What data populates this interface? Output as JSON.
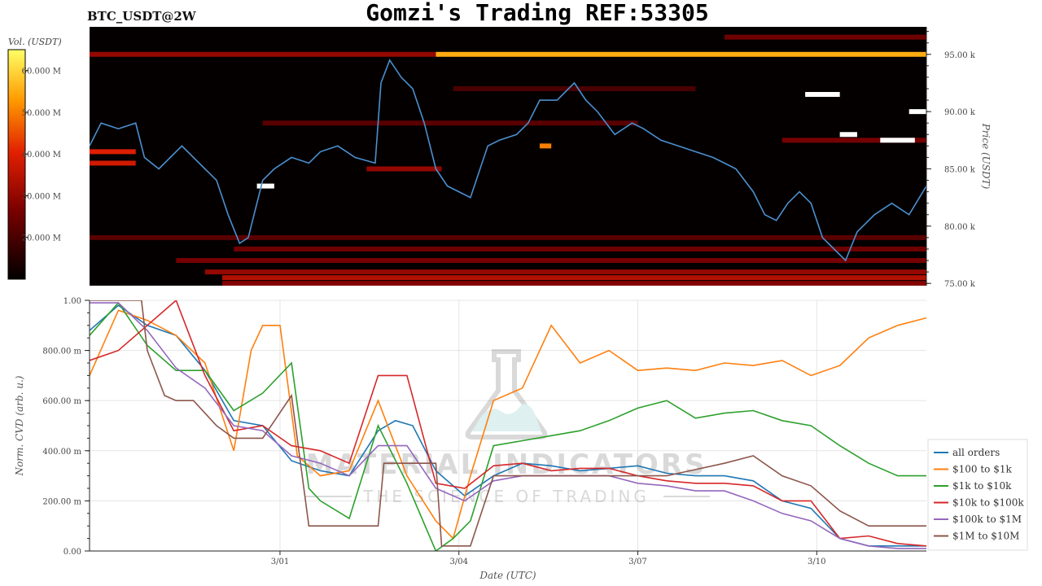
{
  "header": {
    "pair": "BTC_USDT@2W",
    "title": "Gomzi's Trading REF:53305"
  },
  "colorbar": {
    "label": "Vol. (USDT)",
    "ticks": [
      "60.000 M",
      "50.000 M",
      "40.000 M",
      "30.000 M",
      "20.000 M"
    ],
    "tick_values": [
      60,
      50,
      40,
      30,
      20
    ],
    "range": [
      10,
      65
    ]
  },
  "watermark": {
    "line1": "MATERIAL INDICATORS",
    "line2": "THE SCIENCE OF TRADING"
  },
  "colors": {
    "heatmap_bg": "#050000",
    "price_line": "#4a90d0",
    "grid": "#e5e5e5"
  },
  "chart_data": [
    {
      "type": "heatmap",
      "title": "Gomzi's Trading REF:53305",
      "ylabel": "Price (USDT)",
      "ylim": [
        74800,
        97400
      ],
      "y_ticks": [
        "95.00 k",
        "90.00 k",
        "85.00 k",
        "80.00 k",
        "75.00 k"
      ],
      "y_tick_values": [
        95000,
        90000,
        85000,
        80000,
        75000
      ],
      "x_range_days": [
        0,
        14.5
      ],
      "price_series": {
        "x": [
          0,
          0.2,
          0.5,
          0.8,
          0.95,
          1.2,
          1.6,
          2.0,
          2.2,
          2.4,
          2.6,
          2.75,
          3.0,
          3.2,
          3.5,
          3.8,
          4.0,
          4.3,
          4.6,
          4.95,
          5.05,
          5.2,
          5.4,
          5.6,
          5.8,
          6.0,
          6.2,
          6.4,
          6.6,
          6.9,
          7.1,
          7.4,
          7.6,
          7.8,
          8.1,
          8.4,
          8.6,
          8.8,
          9.1,
          9.4,
          9.6,
          9.9,
          10.2,
          10.5,
          10.8,
          11.0,
          11.2,
          11.5,
          11.7,
          11.9,
          12.1,
          12.3,
          12.5,
          12.7,
          12.9,
          13.1,
          13.3,
          13.6,
          13.9,
          14.2,
          14.5
        ],
        "y": [
          87000,
          89000,
          88500,
          89000,
          86000,
          85000,
          87000,
          85000,
          84000,
          81000,
          78500,
          79000,
          84000,
          85000,
          86000,
          85500,
          86500,
          87000,
          86000,
          85500,
          92500,
          94500,
          93000,
          92000,
          89000,
          85000,
          83500,
          83000,
          82500,
          87000,
          87500,
          88000,
          89000,
          91000,
          91000,
          92500,
          91000,
          90000,
          88000,
          89000,
          88500,
          87500,
          87000,
          86500,
          86000,
          85500,
          85000,
          83000,
          81000,
          80500,
          82000,
          83000,
          82000,
          79000,
          78000,
          77000,
          79500,
          81000,
          82000,
          81000,
          83500
        ]
      },
      "liquidity_bands": [
        {
          "price": 95000,
          "start": 6.0,
          "end": 14.5,
          "vol": 55
        },
        {
          "price": 95000,
          "start": 0.0,
          "end": 6.0,
          "vol": 30
        },
        {
          "price": 96500,
          "start": 11.0,
          "end": 14.5,
          "vol": 25
        },
        {
          "price": 86500,
          "start": 0.0,
          "end": 0.8,
          "vol": 40
        },
        {
          "price": 85500,
          "start": 0.0,
          "end": 0.8,
          "vol": 38
        },
        {
          "price": 85000,
          "start": 4.8,
          "end": 6.1,
          "vol": 30
        },
        {
          "price": 87000,
          "start": 7.8,
          "end": 8.0,
          "vol": 50
        },
        {
          "price": 79000,
          "start": 0.0,
          "end": 14.5,
          "vol": 22
        },
        {
          "price": 78000,
          "start": 2.5,
          "end": 14.5,
          "vol": 25
        },
        {
          "price": 77000,
          "start": 1.5,
          "end": 14.5,
          "vol": 26
        },
        {
          "price": 76000,
          "start": 2.0,
          "end": 14.5,
          "vol": 30
        },
        {
          "price": 75500,
          "start": 2.3,
          "end": 14.5,
          "vol": 34
        },
        {
          "price": 75000,
          "start": 2.3,
          "end": 14.5,
          "vol": 28
        },
        {
          "price": 89000,
          "start": 3.0,
          "end": 9.5,
          "vol": 22
        },
        {
          "price": 92000,
          "start": 6.3,
          "end": 10.5,
          "vol": 20
        },
        {
          "price": 87500,
          "start": 12.0,
          "end": 14.5,
          "vol": 26
        },
        {
          "price": 91500,
          "start": 12.4,
          "end": 13.0,
          "vol": 65
        },
        {
          "price": 87500,
          "start": 13.7,
          "end": 14.3,
          "vol": 65
        },
        {
          "price": 88000,
          "start": 13.0,
          "end": 13.3,
          "vol": 65
        },
        {
          "price": 90000,
          "start": 14.2,
          "end": 14.5,
          "vol": 65
        },
        {
          "price": 83500,
          "start": 2.9,
          "end": 3.2,
          "vol": 65
        }
      ]
    },
    {
      "type": "line",
      "xlabel": "Date (UTC)",
      "ylabel": "Norm. CVD (arb. u.)",
      "ylim": [
        0,
        1
      ],
      "y_ticks": [
        "1.00",
        "800.00 m",
        "600.00 m",
        "400.00 m",
        "200.00 m",
        "0.00"
      ],
      "y_tick_values": [
        1.0,
        0.8,
        0.6,
        0.4,
        0.2,
        0.0
      ],
      "x_ticks": [
        "3/01",
        "3/04",
        "3/07",
        "3/10"
      ],
      "x_tick_values": [
        3.3,
        6.4,
        9.5,
        12.6
      ],
      "x_range_days": [
        0,
        14.5
      ],
      "series": [
        {
          "name": "all orders",
          "color": "#1f77b4",
          "x": [
            0,
            0.5,
            1.0,
            1.5,
            2.0,
            2.5,
            3.0,
            3.5,
            4.0,
            4.5,
            5.0,
            5.3,
            5.6,
            6.0,
            6.5,
            7.0,
            7.5,
            8.0,
            8.5,
            9.0,
            9.5,
            10.0,
            10.5,
            11.0,
            11.5,
            12.0,
            12.5,
            13.0,
            13.5,
            14.0,
            14.5
          ],
          "y": [
            0.88,
            0.98,
            0.9,
            0.86,
            0.72,
            0.52,
            0.5,
            0.36,
            0.32,
            0.3,
            0.48,
            0.52,
            0.5,
            0.32,
            0.22,
            0.3,
            0.35,
            0.34,
            0.32,
            0.33,
            0.34,
            0.31,
            0.3,
            0.3,
            0.28,
            0.2,
            0.17,
            0.05,
            0.02,
            0.02,
            0.02
          ]
        },
        {
          "name": "$100 to $1k",
          "color": "#ff7f0e",
          "x": [
            0,
            0.5,
            1.0,
            1.5,
            2.0,
            2.5,
            2.8,
            3.0,
            3.3,
            3.6,
            4.0,
            4.5,
            5.0,
            5.5,
            6.0,
            6.3,
            6.6,
            7.0,
            7.5,
            8.0,
            8.5,
            9.0,
            9.5,
            10.0,
            10.5,
            11.0,
            11.5,
            12.0,
            12.5,
            13.0,
            13.5,
            14.0,
            14.5
          ],
          "y": [
            0.7,
            0.96,
            0.92,
            0.86,
            0.75,
            0.4,
            0.8,
            0.9,
            0.9,
            0.38,
            0.3,
            0.32,
            0.6,
            0.3,
            0.12,
            0.05,
            0.3,
            0.6,
            0.65,
            0.9,
            0.75,
            0.8,
            0.72,
            0.73,
            0.72,
            0.75,
            0.74,
            0.76,
            0.7,
            0.74,
            0.85,
            0.9,
            0.93
          ]
        },
        {
          "name": "$1k to $10k",
          "color": "#2ca02c",
          "x": [
            0,
            0.5,
            1.0,
            1.5,
            2.0,
            2.5,
            3.0,
            3.5,
            3.8,
            4.0,
            4.5,
            5.0,
            5.5,
            6.0,
            6.3,
            6.6,
            7.0,
            7.5,
            8.0,
            8.5,
            9.0,
            9.5,
            10.0,
            10.5,
            11.0,
            11.5,
            12.0,
            12.5,
            13.0,
            13.5,
            14.0,
            14.5
          ],
          "y": [
            0.86,
            0.99,
            0.82,
            0.72,
            0.72,
            0.56,
            0.63,
            0.75,
            0.25,
            0.2,
            0.13,
            0.5,
            0.27,
            0.0,
            0.05,
            0.12,
            0.42,
            0.44,
            0.46,
            0.48,
            0.52,
            0.57,
            0.6,
            0.53,
            0.55,
            0.56,
            0.52,
            0.5,
            0.42,
            0.35,
            0.3,
            0.3
          ]
        },
        {
          "name": "$10k to $100k",
          "color": "#d62728",
          "x": [
            0,
            0.5,
            1.0,
            1.5,
            2.0,
            2.5,
            3.0,
            3.5,
            4.0,
            4.5,
            5.0,
            5.5,
            6.0,
            6.5,
            7.0,
            7.5,
            8.0,
            8.5,
            9.0,
            9.5,
            10.0,
            10.5,
            11.0,
            11.5,
            12.0,
            12.5,
            13.0,
            13.5,
            14.0,
            14.5
          ],
          "y": [
            0.76,
            0.8,
            0.9,
            1.0,
            0.7,
            0.48,
            0.5,
            0.42,
            0.4,
            0.35,
            0.7,
            0.7,
            0.27,
            0.25,
            0.34,
            0.35,
            0.32,
            0.33,
            0.33,
            0.3,
            0.28,
            0.27,
            0.27,
            0.26,
            0.2,
            0.2,
            0.05,
            0.06,
            0.03,
            0.02
          ]
        },
        {
          "name": "$100k to $1M",
          "color": "#9467bd",
          "x": [
            0,
            0.5,
            1.0,
            1.5,
            2.0,
            2.5,
            3.0,
            3.5,
            4.0,
            4.5,
            5.0,
            5.5,
            6.0,
            6.5,
            7.0,
            7.5,
            8.0,
            8.5,
            9.0,
            9.5,
            10.0,
            10.5,
            11.0,
            11.5,
            12.0,
            12.5,
            13.0,
            13.5,
            14.0,
            14.5
          ],
          "y": [
            0.99,
            0.99,
            0.88,
            0.73,
            0.65,
            0.5,
            0.48,
            0.38,
            0.35,
            0.3,
            0.42,
            0.42,
            0.25,
            0.2,
            0.28,
            0.3,
            0.3,
            0.3,
            0.3,
            0.27,
            0.26,
            0.24,
            0.24,
            0.2,
            0.15,
            0.12,
            0.05,
            0.02,
            0.01,
            0.01
          ]
        },
        {
          "name": "$1M to $10M",
          "color": "#8c564b",
          "x": [
            0,
            0.5,
            0.9,
            1.0,
            1.3,
            1.5,
            1.8,
            2.2,
            2.5,
            3.0,
            3.5,
            3.8,
            4.5,
            5.0,
            5.1,
            5.5,
            6.0,
            6.1,
            6.6,
            7.0,
            7.5,
            8.0,
            9.0,
            10.0,
            11.0,
            11.5,
            12.0,
            12.5,
            13.0,
            13.5,
            14.0,
            14.5
          ],
          "y": [
            1.0,
            1.0,
            1.0,
            0.8,
            0.62,
            0.6,
            0.6,
            0.5,
            0.45,
            0.45,
            0.62,
            0.1,
            0.1,
            0.1,
            0.35,
            0.35,
            0.35,
            0.02,
            0.02,
            0.3,
            0.3,
            0.3,
            0.3,
            0.3,
            0.35,
            0.38,
            0.3,
            0.26,
            0.16,
            0.1,
            0.1,
            0.1
          ]
        }
      ]
    }
  ]
}
